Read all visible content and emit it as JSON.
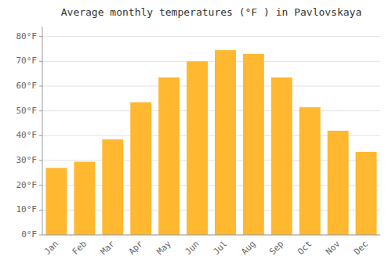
{
  "chart_data": {
    "type": "bar",
    "title": "Average monthly temperatures (°F ) in Pavlovskaya",
    "categories": [
      "Jan",
      "Feb",
      "Mar",
      "Apr",
      "May",
      "Jun",
      "Jul",
      "Aug",
      "Sep",
      "Oct",
      "Nov",
      "Dec"
    ],
    "values": [
      27,
      29.5,
      38.5,
      53.5,
      63.5,
      70,
      74.5,
      73,
      63.5,
      51.5,
      42,
      33.5
    ],
    "color": "#FFB830",
    "ylim": [
      0,
      84
    ],
    "yticks": [
      {
        "value": 0,
        "label": "0°F"
      },
      {
        "value": 10,
        "label": "10°F"
      },
      {
        "value": 20,
        "label": "20°F"
      },
      {
        "value": 30,
        "label": "30°F"
      },
      {
        "value": 40,
        "label": "40°F"
      },
      {
        "value": 50,
        "label": "50°F"
      },
      {
        "value": 60,
        "label": "60°F"
      },
      {
        "value": 70,
        "label": "70°F"
      },
      {
        "value": 80,
        "label": "80°F"
      }
    ],
    "grid": true
  }
}
